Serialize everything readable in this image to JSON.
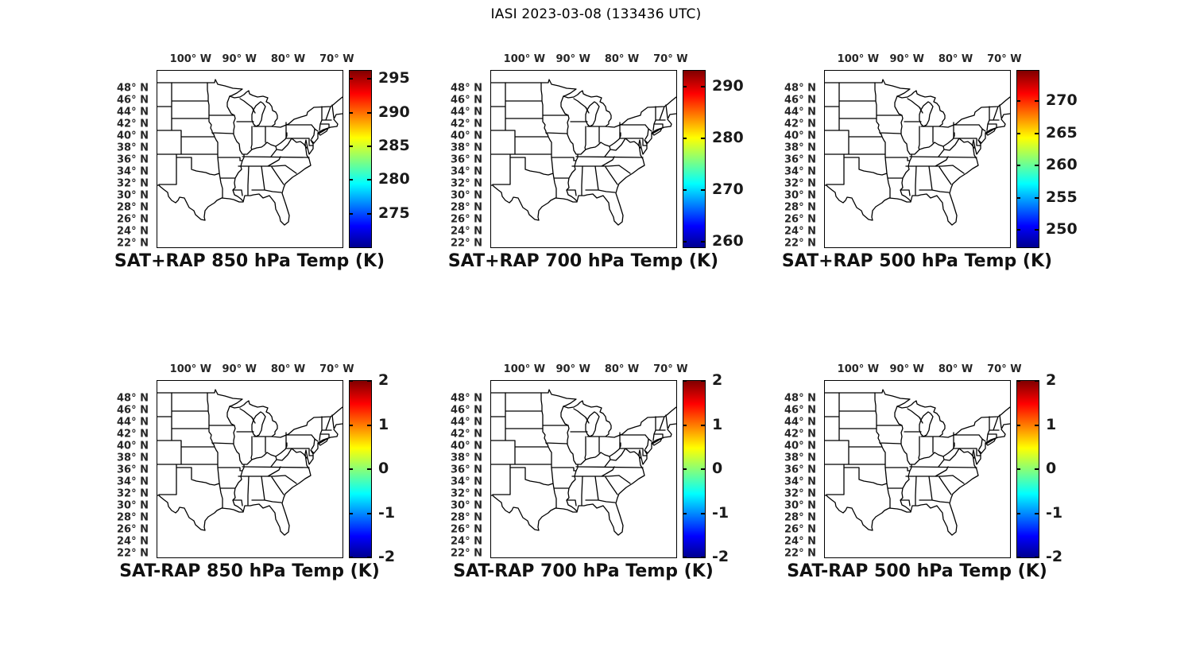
{
  "figure": {
    "title": "IASI 2023-03-08 (133436 UTC)",
    "background_color": "#ffffff",
    "tick_text_color": "#262626",
    "title_text_color": "#000000"
  },
  "chart_data": {
    "type": "heatmap",
    "title": "IASI 2023-03-08 (133436 UTC)",
    "layout": {
      "rows": 2,
      "cols": 3,
      "legend_position": "right-colorbar",
      "grid": false
    },
    "colormap": "jet",
    "map_extent": {
      "lon_deg_w": [
        107,
        69
      ],
      "lat_deg_n": [
        21.5,
        51
      ]
    },
    "lon_axis": {
      "max_deg_w": 107,
      "min_deg_w": 69,
      "ticks": [
        100,
        90,
        80,
        70
      ],
      "suffix": "° W"
    },
    "lat_axis": {
      "max_deg_n": 51,
      "min_deg_n": 21.5,
      "ticks": [
        48,
        46,
        44,
        42,
        40,
        38,
        36,
        34,
        32,
        30,
        28,
        26,
        24,
        22
      ],
      "suffix": "° N"
    },
    "panels": [
      {
        "title": "SAT+RAP 850 hPa Temp (K)",
        "colorbar_ticks": [
          275,
          280,
          285,
          290,
          295
        ],
        "colorbar_range": [
          270.0,
          296.2
        ]
      },
      {
        "title": "SAT+RAP 700 hPa Temp (K)",
        "colorbar_ticks": [
          260,
          270,
          280,
          290
        ],
        "colorbar_range": [
          259.0,
          293.0
        ]
      },
      {
        "title": "SAT+RAP 500 hPa Temp (K)",
        "colorbar_ticks": [
          250,
          255,
          260,
          265,
          270
        ],
        "colorbar_range": [
          247.3,
          274.7
        ]
      },
      {
        "title": "SAT-RAP 850 hPa Temp (K)",
        "colorbar_ticks": [
          -2,
          -1,
          0,
          1,
          2
        ],
        "colorbar_range": [
          -2,
          2
        ]
      },
      {
        "title": "SAT-RAP 700 hPa Temp (K)",
        "colorbar_ticks": [
          -2,
          -1,
          0,
          1,
          2
        ],
        "colorbar_range": [
          -2,
          2
        ]
      },
      {
        "title": "SAT-RAP 500 hPa Temp (K)",
        "colorbar_ticks": [
          -2,
          -1,
          0,
          1,
          2
        ],
        "colorbar_range": [
          -2,
          2
        ]
      }
    ],
    "note": "Six geographic subplots of the central/eastern United States drawn as black state outlines on white; no gridded retrieval values are visibly plotted inside the maps, only the jet colorbars."
  }
}
